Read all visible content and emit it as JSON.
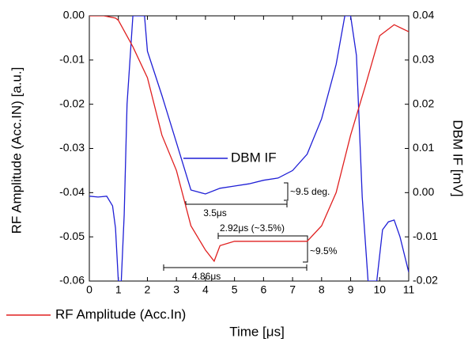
{
  "chart_data": {
    "type": "line",
    "xlabel": "Time [μs]",
    "ylabel": "RF Amplitude (Acc.IN) [a.u.]",
    "y2label": "DBM IF [mV]",
    "xlim": [
      0,
      11
    ],
    "xticks": [
      0,
      1,
      2,
      3,
      4,
      5,
      6,
      7,
      8,
      9,
      10,
      11
    ],
    "ylim": [
      -0.06,
      0
    ],
    "yticks": [
      {
        "value": 0,
        "label": "0.00"
      },
      -0.01,
      -0.02,
      -0.03,
      -0.04,
      -0.05,
      -0.06
    ],
    "y2lim": [
      -0.02,
      0.04
    ],
    "y2ticks": [
      0.04,
      0.03,
      0.02,
      0.01,
      {
        "value": 0,
        "label": "0.00"
      },
      -0.01,
      -0.02
    ],
    "grid": false,
    "series": [
      {
        "name": "DBM IF",
        "color": "#1f1fd6",
        "axis": "y2",
        "x": [
          0,
          0.3,
          0.6,
          0.8,
          0.9,
          1.0,
          1.1,
          1.2,
          1.3,
          1.5,
          1.9,
          2.0,
          2.5,
          3.0,
          3.5,
          4.0,
          4.5,
          5.0,
          5.5,
          6.0,
          6.5,
          7.0,
          7.5,
          8.0,
          8.5,
          8.8,
          9.0,
          9.2,
          9.4,
          9.6,
          9.9,
          10.1,
          10.3,
          10.5,
          10.7,
          11.0
        ],
        "values": [
          -0.0008,
          -0.001,
          -0.0008,
          -0.003,
          -0.008,
          -0.02,
          -0.02,
          -0.005,
          0.02,
          0.04,
          0.04,
          0.032,
          0.022,
          0.0113,
          0.0006,
          -0.0003,
          0.001,
          0.0015,
          0.002,
          0.0028,
          0.0033,
          0.005,
          0.0087,
          0.0167,
          0.029,
          0.04,
          0.04,
          0.031,
          -0.001,
          -0.02,
          -0.02,
          -0.0084,
          -0.0066,
          -0.0062,
          -0.01,
          -0.018
        ]
      },
      {
        "name": "RF Amplitude (Acc.In)",
        "color": "#e02020",
        "axis": "y",
        "x": [
          0,
          0.5,
          0.9,
          1.0,
          1.5,
          2.0,
          2.5,
          3.0,
          3.5,
          4.0,
          4.3,
          4.5,
          5.0,
          6.0,
          7.0,
          7.5,
          8.0,
          8.5,
          9.0,
          9.5,
          10.0,
          10.5,
          11.0
        ],
        "values": [
          0,
          0,
          -0.0005,
          -0.001,
          -0.007,
          -0.014,
          -0.027,
          -0.035,
          -0.0475,
          -0.053,
          -0.0555,
          -0.052,
          -0.051,
          -0.051,
          -0.051,
          -0.051,
          -0.0475,
          -0.04,
          -0.027,
          -0.016,
          -0.0045,
          -0.002,
          -0.0036
        ]
      }
    ],
    "annotations": [
      "~9.5 deg.",
      "3.5μs",
      "2.92μs (~3.5%)",
      "~9.5%",
      "4.86μs"
    ]
  }
}
